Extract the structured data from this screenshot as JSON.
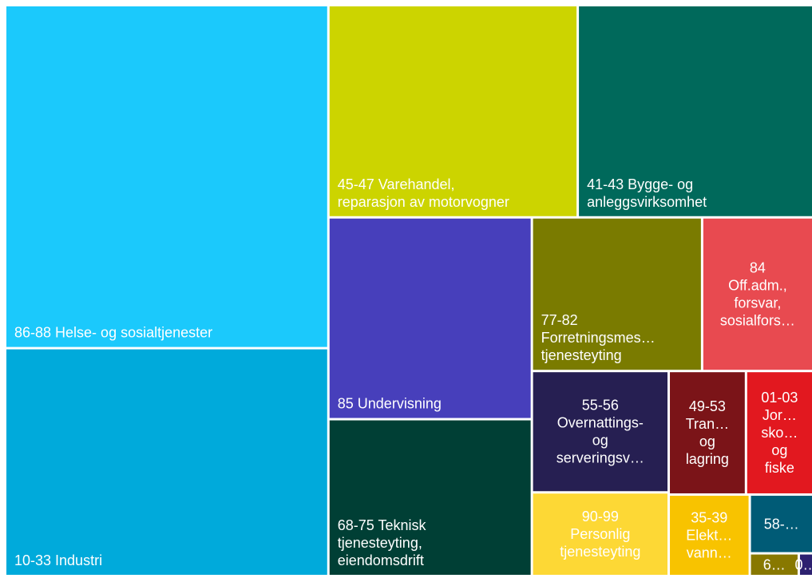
{
  "chart_data": {
    "type": "treemap",
    "categories": [
      "86-88 Helse- og sosialtjenester",
      "10-33 Industri",
      "45-47 Varehandel,\nreparasjon av motorvogner",
      "41-43 Bygge- og\nanleggsvirksomhet",
      "85 Undervisning",
      "68-75 Teknisk\ntjenesteyting,\neiendomsdrift",
      "77-82\nForretningsmes…\ntjenesteyting",
      "84\nOff.adm.,\nforsvar,\nsosialfors…",
      "55-56\nOvernattings-\nog\nserveringsv…",
      "90-99\nPersonlig\ntjenesteyting",
      "49-53\nTran…\nog\nlagring",
      "01-03\nJor…\nsko…\nog\nfiske",
      "35-39\nElekt…\nvann…",
      "58-…",
      "6…",
      "0…"
    ],
    "values": [
      1695,
      1126,
      809,
      764,
      628,
      488,
      400,
      261,
      254,
      175,
      146,
      127,
      101,
      57,
      17,
      5
    ],
    "colors": [
      "#1bc9fc",
      "#00aadb",
      "#ccd400",
      "#00695b",
      "#473fbb",
      "#003f35",
      "#7a7b00",
      "#e84a50",
      "#261f52",
      "#fdd835",
      "#7b1418",
      "#e2181f",
      "#f8c300",
      "#005b76",
      "#887800",
      "#2d2170"
    ]
  }
}
